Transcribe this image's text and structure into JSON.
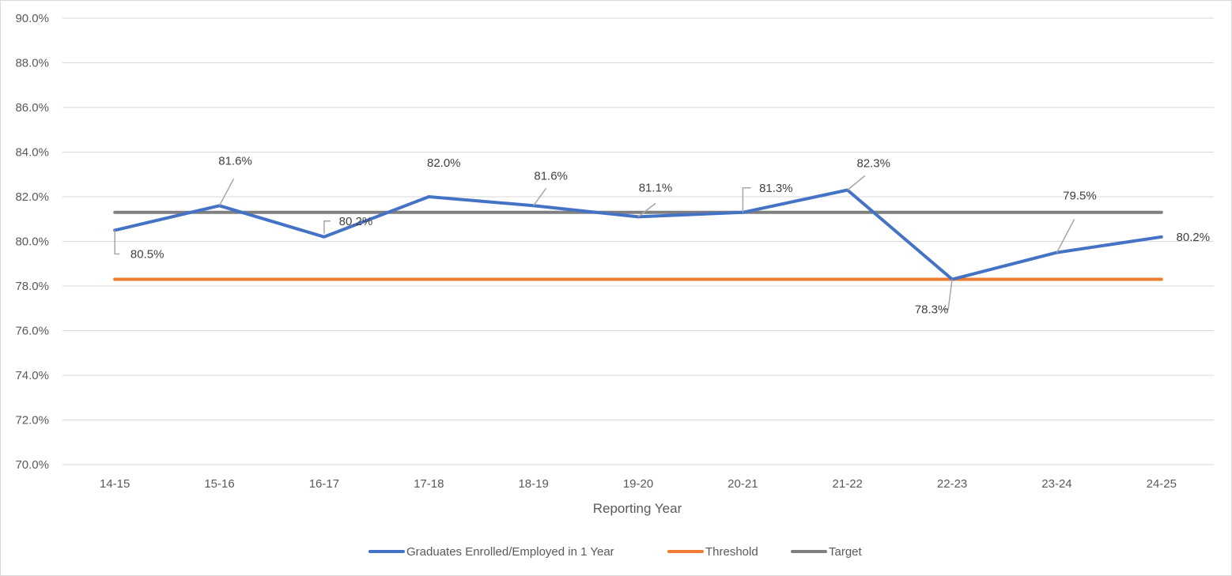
{
  "chart_data": {
    "type": "line",
    "title": "",
    "xlabel": "Reporting Year",
    "ylabel": "",
    "categories": [
      "14-15",
      "15-16",
      "16-17",
      "17-18",
      "18-19",
      "19-20",
      "20-21",
      "21-22",
      "22-23",
      "23-24",
      "24-25"
    ],
    "ylim": [
      70,
      90
    ],
    "ytick_step": 2,
    "ytick_format": "percent_1dp",
    "grid": true,
    "legend_position": "bottom",
    "series": [
      {
        "name": "Graduates Enrolled/Employed in 1 Year",
        "color": "#4472c4",
        "values": [
          80.5,
          81.6,
          80.2,
          82.0,
          81.6,
          81.1,
          81.3,
          82.3,
          78.3,
          79.5,
          80.2
        ],
        "data_labels": [
          "80.5%",
          "81.6%",
          "80.2%",
          "82.0%",
          "81.6%",
          "81.1%",
          "81.3%",
          "82.3%",
          "78.3%",
          "79.5%",
          "80.2%"
        ]
      },
      {
        "name": "Threshold",
        "color": "#ed7d31",
        "values": [
          78.3,
          78.3,
          78.3,
          78.3,
          78.3,
          78.3,
          78.3,
          78.3,
          78.3,
          78.3,
          78.3
        ]
      },
      {
        "name": "Target",
        "color": "#7f7f7f",
        "values": [
          81.3,
          81.3,
          81.3,
          81.3,
          81.3,
          81.3,
          81.3,
          81.3,
          81.3,
          81.3,
          81.3
        ]
      }
    ]
  }
}
